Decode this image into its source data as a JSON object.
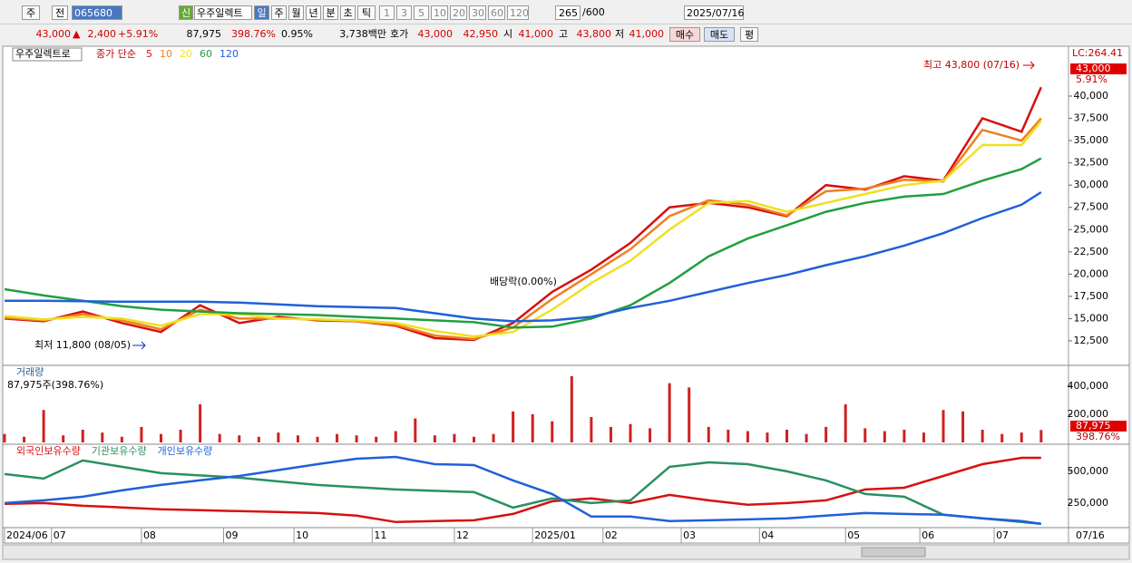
{
  "toolbar": {
    "market": "주",
    "prev": "전",
    "code": "065680",
    "new_badge": "신",
    "name": "우주일렉트",
    "periods": [
      "일",
      "주",
      "월",
      "년",
      "분",
      "초",
      "틱"
    ],
    "intervals": [
      "1",
      "3",
      "5",
      "10",
      "20",
      "30",
      "60",
      "120"
    ],
    "count": "265",
    "max": "/600",
    "date": "2025/07/16"
  },
  "quote": {
    "price": "43,000",
    "arrow": "▲",
    "change": "2,400",
    "rate": "+5.91%",
    "volume": "87,975",
    "volume_rate": "398.76%",
    "turnover": "0.95%",
    "amount": "3,738백만",
    "ask_label": "호가",
    "ask": "43,000",
    "bid": "42,950",
    "open_label": "시",
    "open": "41,000",
    "high_label": "고",
    "high": "43,800",
    "low_label": "저",
    "low": "41,000",
    "buy": "매수",
    "sell": "매도",
    "avg": "평"
  },
  "chart_data": [
    {
      "type": "line",
      "title": "우주일렉트로",
      "subtitle": "종가 단순",
      "x": [
        0,
        10,
        20,
        30,
        40,
        50,
        60,
        70,
        80,
        90,
        100,
        110,
        120,
        130,
        140,
        150,
        160,
        170,
        180,
        190,
        200,
        210,
        220,
        230,
        240,
        250,
        260,
        265
      ],
      "series": [
        {
          "name": "5",
          "color": "#d81010",
          "values": [
            15000,
            14700,
            15800,
            14500,
            13500,
            16500,
            14500,
            15200,
            14800,
            14700,
            14200,
            12800,
            12600,
            14500,
            18000,
            20500,
            23500,
            27500,
            28000,
            27500,
            26500,
            30000,
            29500,
            31000,
            30500,
            37500,
            36000,
            41000
          ]
        },
        {
          "name": "10",
          "color": "#f08020",
          "values": [
            15100,
            14800,
            15500,
            14800,
            13800,
            16000,
            15000,
            15000,
            14900,
            14700,
            14300,
            13100,
            12700,
            14000,
            17200,
            20000,
            22800,
            26500,
            28300,
            27800,
            26600,
            29300,
            29600,
            30600,
            30400,
            36200,
            35000,
            37500
          ]
        },
        {
          "name": "20",
          "color": "#f0e020",
          "values": [
            15300,
            14900,
            15200,
            15000,
            14200,
            15500,
            15500,
            15000,
            14900,
            14800,
            14500,
            13600,
            13000,
            13500,
            16000,
            19000,
            21500,
            25000,
            28000,
            28200,
            27000,
            28000,
            29000,
            30000,
            30500,
            34500,
            34500,
            37200
          ]
        },
        {
          "name": "60",
          "color": "#20a040",
          "values": [
            18300,
            17600,
            17000,
            16400,
            16000,
            15800,
            15600,
            15500,
            15400,
            15200,
            15000,
            14800,
            14600,
            14000,
            14100,
            15000,
            16500,
            19000,
            22000,
            24000,
            25500,
            27000,
            28000,
            28700,
            29000,
            30500,
            31800,
            33000
          ]
        },
        {
          "name": "120",
          "color": "#2060d8",
          "values": [
            17000,
            17000,
            16950,
            16900,
            16900,
            16900,
            16800,
            16600,
            16400,
            16300,
            16200,
            15600,
            15000,
            14700,
            14800,
            15200,
            16200,
            17000,
            18000,
            19000,
            19900,
            21000,
            22000,
            23200,
            24600,
            26300,
            27800,
            29200
          ]
        }
      ],
      "xlim": [
        0,
        272
      ],
      "ylim": [
        9850,
        45500
      ],
      "yticks": [
        {
          "value": 12500,
          "label": "12,500"
        },
        {
          "value": 15000,
          "label": "15,000"
        },
        {
          "value": 17500,
          "label": "17,500"
        },
        {
          "value": 20000,
          "label": "20,000"
        },
        {
          "value": 22500,
          "label": "22,500"
        },
        {
          "value": 25000,
          "label": "25,000"
        },
        {
          "value": 27500,
          "label": "27,500"
        },
        {
          "value": 30000,
          "label": "30,000"
        },
        {
          "value": 32500,
          "label": "32,500"
        },
        {
          "value": 35000,
          "label": "35,000"
        },
        {
          "value": 37500,
          "label": "37,500"
        },
        {
          "value": 40000,
          "label": "40,000"
        }
      ],
      "annotations": [
        "최고 43,800 (07/16)",
        "최저 11,800 (08/05)",
        "배당락(0.00%)"
      ],
      "right_labels": [
        "LC:264.41",
        "43,000",
        "5.91%"
      ]
    },
    {
      "type": "bar",
      "title": "거래량",
      "subtitle": "87,975주(398.76%)",
      "color": "#d02020",
      "x": [
        0,
        5,
        10,
        15,
        20,
        25,
        30,
        35,
        40,
        45,
        50,
        55,
        60,
        65,
        70,
        75,
        80,
        85,
        90,
        95,
        100,
        105,
        110,
        115,
        120,
        125,
        130,
        135,
        140,
        145,
        150,
        155,
        160,
        165,
        170,
        175,
        180,
        185,
        190,
        195,
        200,
        205,
        210,
        215,
        220,
        225,
        230,
        235,
        240,
        245,
        250,
        255,
        260,
        265
      ],
      "values": [
        60000,
        40000,
        230000,
        50000,
        90000,
        70000,
        40000,
        110000,
        60000,
        90000,
        270000,
        60000,
        50000,
        40000,
        70000,
        50000,
        40000,
        60000,
        50000,
        40000,
        80000,
        170000,
        50000,
        60000,
        40000,
        60000,
        220000,
        200000,
        150000,
        470000,
        180000,
        110000,
        130000,
        100000,
        420000,
        390000,
        110000,
        90000,
        80000,
        70000,
        90000,
        60000,
        110000,
        270000,
        100000,
        80000,
        90000,
        70000,
        230000,
        220000,
        90000,
        60000,
        70000,
        87975
      ],
      "xlim": [
        0,
        272
      ],
      "ylim": [
        0,
        540000
      ],
      "yticks": [
        {
          "value": 200000,
          "label": "200,000"
        },
        {
          "value": 400000,
          "label": "400,000"
        }
      ],
      "right_labels": [
        "87,975",
        "398.76%"
      ]
    },
    {
      "type": "line",
      "x": [
        0,
        10,
        20,
        30,
        40,
        50,
        60,
        70,
        80,
        90,
        100,
        110,
        120,
        130,
        140,
        150,
        160,
        170,
        180,
        190,
        200,
        210,
        220,
        230,
        240,
        250,
        260,
        265
      ],
      "series": [
        {
          "name": "외국인보유수량",
          "color": "#d81010",
          "values": [
            243000,
            250000,
            228000,
            215000,
            200000,
            193000,
            186000,
            179000,
            171000,
            150000,
            100000,
            107000,
            114000,
            164000,
            264000,
            286000,
            250000,
            314000,
            271000,
            236000,
            250000,
            271000,
            357000,
            371000,
            464000,
            557000,
            607000,
            607000
          ]
        },
        {
          "name": "기관보유수량",
          "color": "#2a9060",
          "values": [
            479000,
            443000,
            586000,
            536000,
            486000,
            468000,
            450000,
            421000,
            393000,
            375000,
            357000,
            346000,
            336000,
            214000,
            286000,
            250000,
            271000,
            536000,
            571000,
            557000,
            500000,
            429000,
            321000,
            300000,
            157000,
            129000,
            100000,
            86000
          ]
        },
        {
          "name": "개인보유수량",
          "color": "#2060d8",
          "values": [
            250000,
            271000,
            300000,
            350000,
            393000,
            430000,
            464000,
            510000,
            557000,
            600000,
            614000,
            557000,
            550000,
            429000,
            321000,
            143000,
            143000,
            107000,
            114000,
            121000,
            129000,
            150000,
            171000,
            164000,
            157000,
            129000,
            107000,
            86000
          ]
        }
      ],
      "xlim": [
        0,
        272
      ],
      "ylim": [
        70000,
        700000
      ],
      "yticks": [
        {
          "value": 250000,
          "label": "250,000"
        },
        {
          "value": 500000,
          "label": "500,000"
        }
      ],
      "xticks": [
        {
          "value": 0,
          "label": "2024/06"
        },
        {
          "value": 12,
          "label": "07"
        },
        {
          "value": 35,
          "label": "08"
        },
        {
          "value": 56,
          "label": "09"
        },
        {
          "value": 74,
          "label": "10"
        },
        {
          "value": 94,
          "label": "11"
        },
        {
          "value": 115,
          "label": "12"
        },
        {
          "value": 135,
          "label": "2025/01"
        },
        {
          "value": 153,
          "label": "02"
        },
        {
          "value": 173,
          "label": "03"
        },
        {
          "value": 193,
          "label": "04"
        },
        {
          "value": 215,
          "label": "05"
        },
        {
          "value": 234,
          "label": "06"
        },
        {
          "value": 253,
          "label": "07"
        }
      ],
      "cursor_label": "07/16"
    }
  ]
}
